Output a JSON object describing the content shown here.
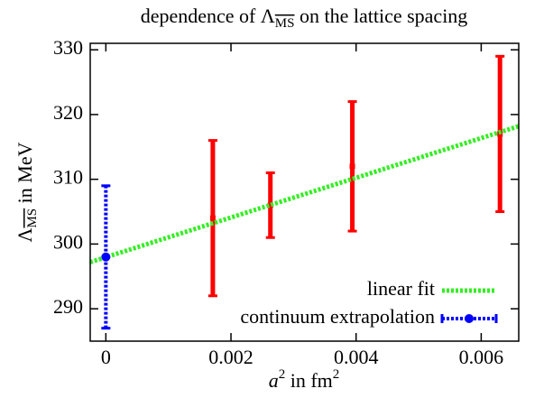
{
  "chart_data": {
    "type": "errorbar",
    "title": [
      "dependence of Λ",
      "MS",
      " on the lattice spacing"
    ],
    "xlabel": [
      "a",
      "2",
      " in fm",
      "2"
    ],
    "ylabel": [
      "Λ",
      "MS",
      " in MeV"
    ],
    "xlim": [
      -0.00025,
      0.0066
    ],
    "ylim": [
      285,
      331
    ],
    "xticks": [
      0,
      0.002,
      0.004,
      0.006
    ],
    "yticks": [
      290,
      300,
      310,
      320,
      330
    ],
    "legend": "lower right",
    "series": [
      {
        "type": "errorbar",
        "color": "#ff0000",
        "x": [
          0.00171,
          0.00263,
          0.00394,
          0.0063
        ],
        "values": [
          304,
          306,
          312,
          317
        ],
        "errors": [
          12,
          5,
          10,
          12
        ]
      },
      {
        "type": "line",
        "name": "linear fit",
        "color": "#33ee22",
        "x": [
          -0.00025,
          0.0066
        ],
        "values": [
          297.2,
          318.2
        ]
      },
      {
        "type": "errorbar",
        "name": "continuum extrapolation",
        "color": "#0000ff",
        "x": [
          0
        ],
        "values": [
          298
        ],
        "errors": [
          11
        ]
      }
    ]
  }
}
